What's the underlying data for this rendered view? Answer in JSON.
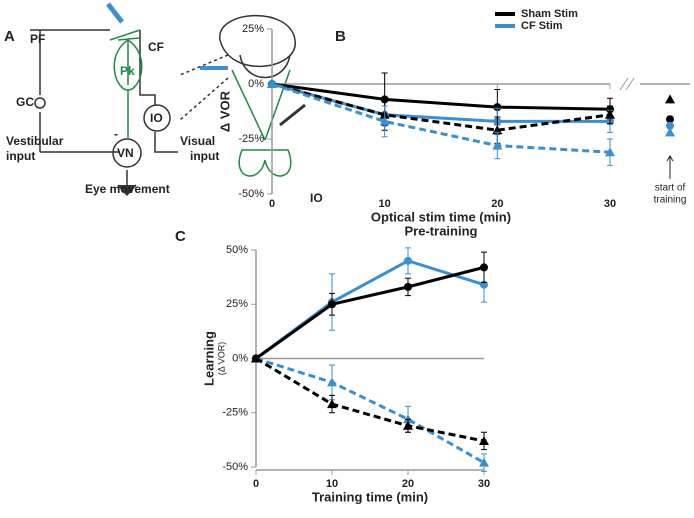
{
  "diagram": {
    "panel": "A",
    "labels": [
      "PF",
      "CF",
      "Pk",
      "GC",
      "IO",
      "VN",
      "Vestibular",
      "input",
      "Visual",
      "input",
      "Eye movement",
      "IO",
      "-"
    ]
  },
  "chart_data": [
    {
      "type": "line",
      "panel": "B",
      "y_label": "Δ VOR",
      "x_label": "Optical stim time (min)",
      "subtitle": "Pre-training",
      "annotation": [
        "start of",
        "training"
      ],
      "legend": "upper right",
      "x": [
        0,
        10,
        20,
        30
      ],
      "xlim": [
        0,
        30
      ],
      "xticks": [
        0,
        10,
        20,
        30
      ],
      "ylim": [
        -50,
        25
      ],
      "yticks": [
        {
          "value": 25,
          "label": "25%"
        },
        {
          "value": 0,
          "label": "0%"
        },
        {
          "value": -25,
          "label": "-25%"
        },
        {
          "value": -50,
          "label": "-50%"
        }
      ],
      "series": [
        {
          "name": "Sham Stim",
          "color": "#000000",
          "dash": false,
          "marker": "circle",
          "values": [
            0,
            -7,
            -10.5,
            -11.5
          ],
          "errors": [
            0,
            12,
            8,
            5
          ],
          "start": -16
        },
        {
          "name": "CF Stim",
          "color": "#3b8fcf",
          "dash": false,
          "marker": "circle",
          "values": [
            0,
            -14,
            -17,
            -17
          ],
          "errors": [
            0,
            4,
            6,
            5
          ],
          "start": -19
        },
        {
          "color": "#000000",
          "dash": true,
          "marker": "triangle",
          "values": [
            0,
            -14,
            -21,
            -14
          ],
          "errors": [
            0,
            7,
            6,
            4
          ],
          "start": -7
        },
        {
          "color": "#3b8fcf",
          "dash": true,
          "marker": "triangle",
          "values": [
            0,
            -17,
            -28,
            -31
          ],
          "errors": [
            0,
            7,
            6,
            6
          ],
          "start": -22
        }
      ]
    },
    {
      "type": "line",
      "panel": "C",
      "y_label": "Learning",
      "y_label_sub": "(Δ VOR)",
      "x_label": "Training time (min)",
      "x": [
        0,
        10,
        20,
        30
      ],
      "xlim": [
        0,
        30
      ],
      "xticks": [
        0,
        10,
        20,
        30
      ],
      "ylim": [
        -50,
        50
      ],
      "yticks": [
        {
          "value": 50,
          "label": "50%"
        },
        {
          "value": 25,
          "label": "25%"
        },
        {
          "value": 0,
          "label": "0%"
        },
        {
          "value": -25,
          "label": "-25%"
        },
        {
          "value": -50,
          "label": "-50%"
        }
      ],
      "series": [
        {
          "color": "#3b8fcf",
          "dash": false,
          "marker": "circle",
          "values": [
            0,
            26,
            45,
            34
          ],
          "errors": [
            0,
            13,
            6,
            8
          ]
        },
        {
          "color": "#000000",
          "dash": false,
          "marker": "circle",
          "values": [
            0,
            25,
            33,
            42
          ],
          "errors": [
            0,
            5,
            4,
            7
          ]
        },
        {
          "color": "#3b8fcf",
          "dash": true,
          "marker": "triangle",
          "values": [
            0,
            -11,
            -28,
            -48
          ],
          "errors": [
            0,
            8,
            6,
            4
          ]
        },
        {
          "color": "#000000",
          "dash": true,
          "marker": "triangle",
          "values": [
            0,
            -21,
            -31,
            -38
          ],
          "errors": [
            0,
            4,
            3,
            4
          ]
        }
      ]
    }
  ]
}
